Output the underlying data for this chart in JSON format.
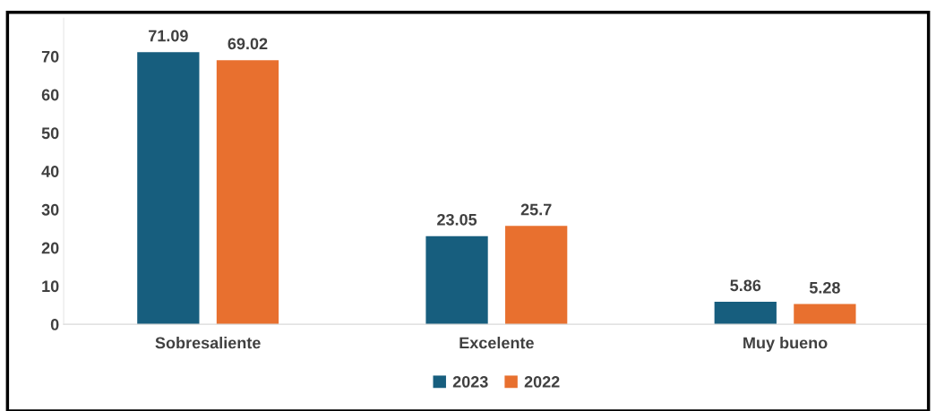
{
  "chart_data": {
    "type": "bar",
    "categories": [
      "Sobresaliente",
      "Excelente",
      "Muy bueno"
    ],
    "series": [
      {
        "name": "2023",
        "color": "#175e7e",
        "values": [
          71.09,
          23.05,
          5.86
        ]
      },
      {
        "name": "2022",
        "color": "#e8702f",
        "values": [
          69.02,
          25.7,
          5.28
        ]
      }
    ],
    "ylim": [
      0,
      80
    ],
    "yticks": [
      0,
      10,
      20,
      30,
      40,
      50,
      60,
      70
    ],
    "data_labels": true,
    "grid": false,
    "legend": "bottom"
  }
}
